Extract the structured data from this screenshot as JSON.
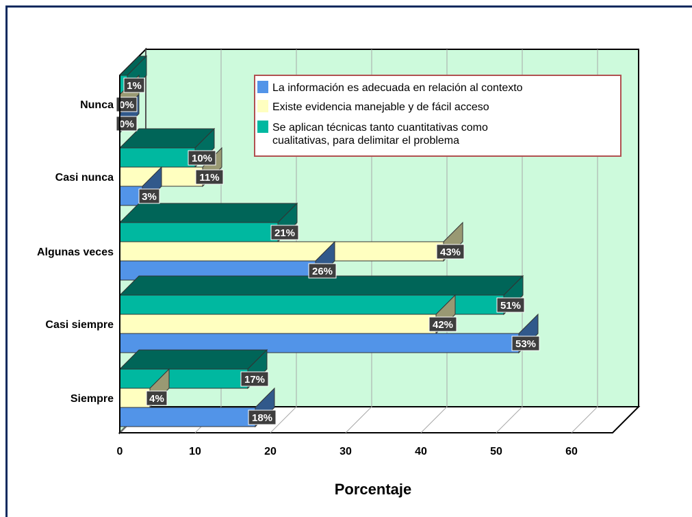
{
  "chart_data": {
    "type": "bar",
    "orientation": "horizontal",
    "categories": [
      "Nunca",
      "Casi nunca",
      "Algunas veces",
      "Casi siempre",
      "Siempre"
    ],
    "series": [
      {
        "name": "La información es adecuada en relación al contexto",
        "values": [
          0,
          3,
          26,
          53,
          18
        ],
        "color": "#5294e8"
      },
      {
        "name": "Existe evidencia manejable y de fácil acceso",
        "values": [
          0,
          11,
          43,
          42,
          4
        ],
        "color": "#ffffc0"
      },
      {
        "name": "Se aplican técnicas tanto cuantitativas como cualitativas, para delimitar el problema",
        "values": [
          1,
          10,
          21,
          51,
          17
        ],
        "color": "#00b8a0"
      }
    ],
    "data_labels": [
      [
        "0%",
        "3%",
        "26%",
        "53%",
        "18%"
      ],
      [
        "0%",
        "11%",
        "43%",
        "42%",
        "4%"
      ],
      [
        "1%",
        "10%",
        "21%",
        "51%",
        "17%"
      ]
    ],
    "ticks": [
      "0",
      "10",
      "20",
      "30",
      "40",
      "50",
      "60"
    ],
    "xlim": [
      0,
      60
    ],
    "xlabel": "Porcentaje",
    "ylabel": "",
    "title": "",
    "legend_position": "top-right",
    "grid": true,
    "background_color": "#cdfadc"
  }
}
